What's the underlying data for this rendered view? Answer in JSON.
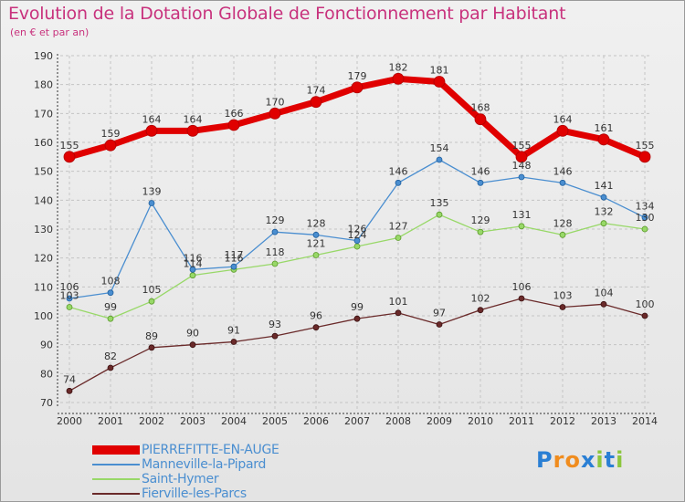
{
  "title": "Evolution de la Dotation Globale de Fonctionnement par Habitant",
  "subtitle": "(en € et par an)",
  "logo": {
    "letters": [
      {
        "ch": "P",
        "color": "#2a7fd4"
      },
      {
        "ch": "r",
        "color": "#f08c1e"
      },
      {
        "ch": "o",
        "color": "#f08c1e"
      },
      {
        "ch": "x",
        "color": "#2a7fd4"
      },
      {
        "ch": "i",
        "color": "#8cc63e"
      },
      {
        "ch": "t",
        "color": "#2a7fd4"
      },
      {
        "ch": "i",
        "color": "#8cc63e"
      }
    ]
  },
  "chart_data": {
    "type": "line",
    "categories": [
      "2000",
      "2001",
      "2002",
      "2003",
      "2004",
      "2005",
      "2006",
      "2007",
      "2008",
      "2009",
      "2010",
      "2011",
      "2012",
      "2013",
      "2014"
    ],
    "ylim": [
      70,
      190
    ],
    "yticks": [
      70,
      80,
      90,
      100,
      110,
      120,
      130,
      140,
      150,
      160,
      170,
      180,
      190
    ],
    "grid": true,
    "series": [
      {
        "name": "PIERREFITTE-EN-AUGE",
        "color": "#e00000",
        "values": [
          155,
          159,
          164,
          164,
          166,
          170,
          174,
          179,
          182,
          181,
          168,
          155,
          164,
          161,
          155
        ]
      },
      {
        "name": "Manneville-la-Pipard",
        "color": "#4a8ed0",
        "values": [
          106,
          108,
          139,
          116,
          117,
          129,
          128,
          126,
          146,
          154,
          146,
          148,
          146,
          141,
          134
        ]
      },
      {
        "name": "Saint-Hymer",
        "color": "#98d868",
        "values": [
          103,
          99,
          105,
          114,
          116,
          118,
          121,
          124,
          127,
          135,
          129,
          131,
          128,
          132,
          130
        ]
      },
      {
        "name": "Fierville-les-Parcs",
        "color": "#6a2a2a",
        "values": [
          74,
          82,
          89,
          90,
          91,
          93,
          96,
          99,
          101,
          97,
          102,
          106,
          103,
          104,
          100
        ]
      }
    ]
  }
}
